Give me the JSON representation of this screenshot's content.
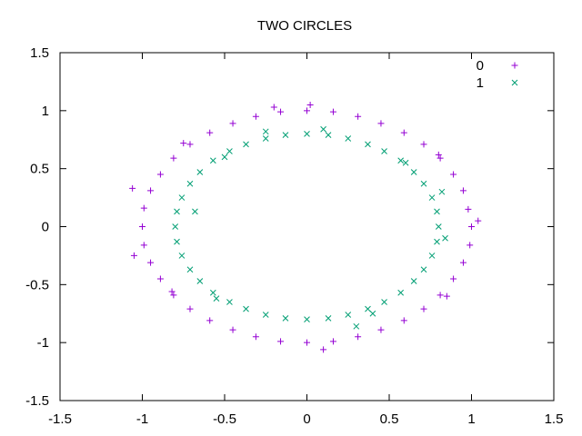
{
  "chart_data": {
    "type": "scatter",
    "title": "TWO CIRCLES",
    "xlabel": "",
    "ylabel": "",
    "xlim": [
      -1.5,
      1.5
    ],
    "ylim": [
      -1.5,
      1.5
    ],
    "xticks": [
      "-1.5",
      "-1",
      "-0.5",
      "0",
      "0.5",
      "1",
      "1.5"
    ],
    "yticks": [
      "1.5",
      "1",
      "0.5",
      "0",
      "-0.5",
      "-1",
      "-1.5"
    ],
    "grid": false,
    "legend_position": "top-right",
    "series": [
      {
        "name": "0",
        "marker": "plus",
        "color": "#9400d3",
        "points": [
          [
            1.0,
            0.0
          ],
          [
            0.98,
            0.15
          ],
          [
            0.95,
            0.31
          ],
          [
            0.89,
            0.45
          ],
          [
            0.81,
            0.59
          ],
          [
            0.71,
            0.71
          ],
          [
            0.59,
            0.81
          ],
          [
            0.45,
            0.89
          ],
          [
            0.31,
            0.95
          ],
          [
            0.16,
            0.99
          ],
          [
            0.0,
            1.0
          ],
          [
            -0.16,
            0.99
          ],
          [
            -0.31,
            0.95
          ],
          [
            -0.45,
            0.89
          ],
          [
            -0.59,
            0.81
          ],
          [
            -0.71,
            0.71
          ],
          [
            -0.81,
            0.59
          ],
          [
            -0.89,
            0.45
          ],
          [
            -0.95,
            0.31
          ],
          [
            -0.99,
            0.16
          ],
          [
            -1.0,
            0.0
          ],
          [
            -0.99,
            -0.16
          ],
          [
            -0.95,
            -0.31
          ],
          [
            -0.89,
            -0.45
          ],
          [
            -0.81,
            -0.59
          ],
          [
            -0.71,
            -0.71
          ],
          [
            -0.59,
            -0.81
          ],
          [
            -0.45,
            -0.89
          ],
          [
            -0.31,
            -0.95
          ],
          [
            -0.16,
            -0.99
          ],
          [
            0.0,
            -1.0
          ],
          [
            0.16,
            -0.99
          ],
          [
            0.31,
            -0.95
          ],
          [
            0.45,
            -0.89
          ],
          [
            0.59,
            -0.81
          ],
          [
            0.71,
            -0.71
          ],
          [
            0.81,
            -0.59
          ],
          [
            0.89,
            -0.45
          ],
          [
            0.95,
            -0.31
          ],
          [
            0.99,
            -0.16
          ],
          [
            1.04,
            0.05
          ],
          [
            -1.05,
            -0.25
          ],
          [
            -1.06,
            0.33
          ],
          [
            0.02,
            1.05
          ],
          [
            0.1,
            -1.06
          ],
          [
            -0.75,
            0.72
          ],
          [
            0.8,
            0.62
          ],
          [
            -0.82,
            -0.56
          ],
          [
            0.85,
            -0.6
          ],
          [
            -0.2,
            1.03
          ]
        ]
      },
      {
        "name": "1",
        "marker": "cross",
        "color": "#009e73",
        "points": [
          [
            0.8,
            0.0
          ],
          [
            0.79,
            0.13
          ],
          [
            0.76,
            0.25
          ],
          [
            0.71,
            0.37
          ],
          [
            0.65,
            0.47
          ],
          [
            0.57,
            0.57
          ],
          [
            0.47,
            0.65
          ],
          [
            0.37,
            0.71
          ],
          [
            0.25,
            0.76
          ],
          [
            0.13,
            0.79
          ],
          [
            0.0,
            0.8
          ],
          [
            -0.13,
            0.79
          ],
          [
            -0.25,
            0.76
          ],
          [
            -0.37,
            0.71
          ],
          [
            -0.47,
            0.65
          ],
          [
            -0.57,
            0.57
          ],
          [
            -0.65,
            0.47
          ],
          [
            -0.71,
            0.37
          ],
          [
            -0.76,
            0.25
          ],
          [
            -0.79,
            0.13
          ],
          [
            -0.8,
            0.0
          ],
          [
            -0.79,
            -0.13
          ],
          [
            -0.76,
            -0.25
          ],
          [
            -0.71,
            -0.37
          ],
          [
            -0.65,
            -0.47
          ],
          [
            -0.57,
            -0.57
          ],
          [
            -0.47,
            -0.65
          ],
          [
            -0.37,
            -0.71
          ],
          [
            -0.25,
            -0.76
          ],
          [
            -0.13,
            -0.79
          ],
          [
            0.0,
            -0.8
          ],
          [
            0.13,
            -0.79
          ],
          [
            0.25,
            -0.76
          ],
          [
            0.37,
            -0.71
          ],
          [
            0.47,
            -0.65
          ],
          [
            0.57,
            -0.57
          ],
          [
            0.65,
            -0.47
          ],
          [
            0.71,
            -0.37
          ],
          [
            0.76,
            -0.25
          ],
          [
            0.79,
            -0.13
          ],
          [
            -0.68,
            0.13
          ],
          [
            0.82,
            0.3
          ],
          [
            0.4,
            -0.75
          ],
          [
            -0.5,
            0.6
          ],
          [
            0.1,
            0.84
          ],
          [
            0.84,
            -0.1
          ],
          [
            -0.55,
            -0.62
          ],
          [
            0.6,
            0.55
          ],
          [
            -0.25,
            0.82
          ],
          [
            0.3,
            -0.86
          ]
        ]
      }
    ]
  }
}
